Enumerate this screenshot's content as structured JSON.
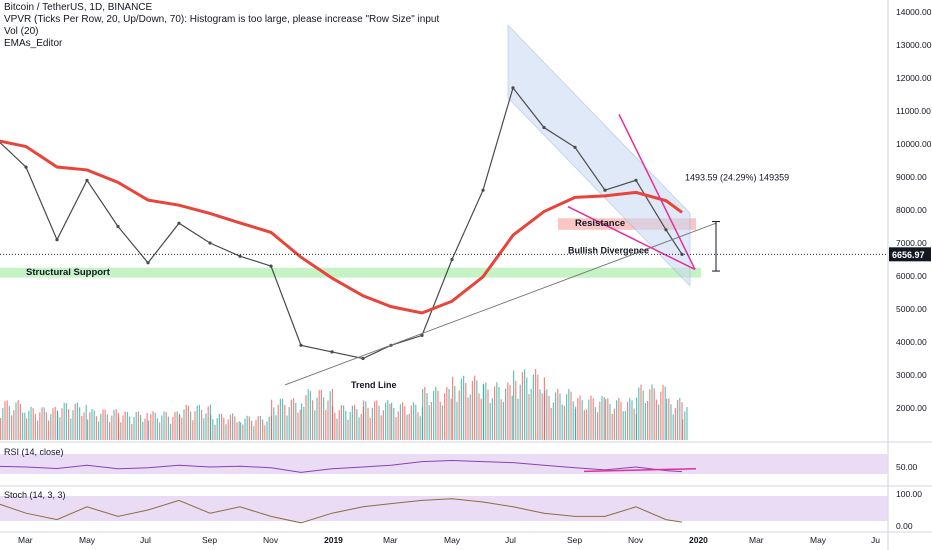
{
  "header": {
    "symbol_line": "Bitcoin / TetherUS, 1D, BINANCE",
    "vpvr_line": "VPVR (Ticks Per Row, 20, Up/Down, 70): Histogram is too large, please increase \"Row Size\" input",
    "vol_line": "Vol (20)",
    "ema_line": "EMAs_Editor"
  },
  "price_axis": {
    "ticks": [
      "14000.00",
      "13000.00",
      "12000.00",
      "11000.00",
      "10000.00",
      "9000.00",
      "8000.00",
      "7000.00",
      "6000.00",
      "5000.00",
      "4000.00",
      "3000.00",
      "2000.00"
    ],
    "current_price": "6656.97"
  },
  "annotations": {
    "resistance": "Resistance",
    "structural_support": "Structural Support",
    "bullish_divergence": "Bullish Divergence",
    "trend_line": "Trend Line",
    "measure": "1493.59 (24.29%) 149359"
  },
  "rsi": {
    "label": "RSI (14, close)",
    "value_label": "50.00"
  },
  "stoch": {
    "label": "Stoch (14, 3, 3)",
    "ticks": [
      "100.00",
      "0.00"
    ]
  },
  "time_axis": [
    "Mar",
    "May",
    "Jul",
    "Sep",
    "Nov",
    "2019",
    "Mar",
    "May",
    "Jul",
    "Sep",
    "Nov",
    "2020",
    "Mar",
    "May",
    "Ju"
  ],
  "colors": {
    "candle_up": "#26a69a",
    "candle_down": "#ef5350",
    "ema_slow": "#e8443a",
    "resistance_zone": "#f7b7b7",
    "support_zone": "#b7f0b7",
    "channel": "#c8d8f2",
    "wedge": "#e0309a",
    "rsi_band": "#e6d3f2",
    "stoch_band": "#e6d3f2"
  },
  "chart_data": {
    "type": "line",
    "title": "Bitcoin / TetherUS, 1D, BINANCE",
    "xlabel": "",
    "ylabel": "",
    "ylim": [
      1200,
      14500
    ],
    "grid": false,
    "x": [
      "2018-02-01",
      "2018-03-01",
      "2018-04-01",
      "2018-05-01",
      "2018-06-01",
      "2018-07-01",
      "2018-08-01",
      "2018-09-01",
      "2018-10-01",
      "2018-11-01",
      "2018-12-01",
      "2019-01-01",
      "2019-02-01",
      "2019-03-01",
      "2019-04-01",
      "2019-05-01",
      "2019-06-01",
      "2019-07-01",
      "2019-08-01",
      "2019-09-01",
      "2019-10-01",
      "2019-11-01",
      "2019-12-01",
      "2019-12-17"
    ],
    "series": [
      {
        "values": [
          10100,
          9300,
          7100,
          8900,
          7500,
          6400,
          7600,
          7000,
          6600,
          6300,
          3900,
          3700,
          3500,
          3900,
          4200,
          6500,
          8600,
          11700,
          10500,
          9900,
          8600,
          8900,
          7400,
          6657
        ]
      }
    ],
    "resistance_zone": [
      7400,
      7750
    ],
    "support_zone": [
      5950,
      6250
    ],
    "rsi_values": [
      52,
      50,
      46,
      55,
      45,
      48,
      55,
      50,
      52,
      48,
      35,
      45,
      50,
      55,
      65,
      68,
      65,
      62,
      55,
      48,
      42,
      50,
      40,
      37
    ],
    "stoch_values": [
      70,
      40,
      20,
      60,
      30,
      50,
      80,
      40,
      60,
      30,
      10,
      40,
      60,
      70,
      80,
      85,
      75,
      60,
      40,
      30,
      30,
      60,
      20,
      12
    ],
    "volume_values": [
      2200,
      1900,
      2100,
      1800,
      1700,
      1700,
      2000,
      1600,
      1500,
      2300,
      2700,
      2000,
      2200,
      2100,
      2800,
      3300,
      3000,
      3600,
      2700,
      2400,
      2300,
      2900,
      2300,
      1900
    ]
  }
}
